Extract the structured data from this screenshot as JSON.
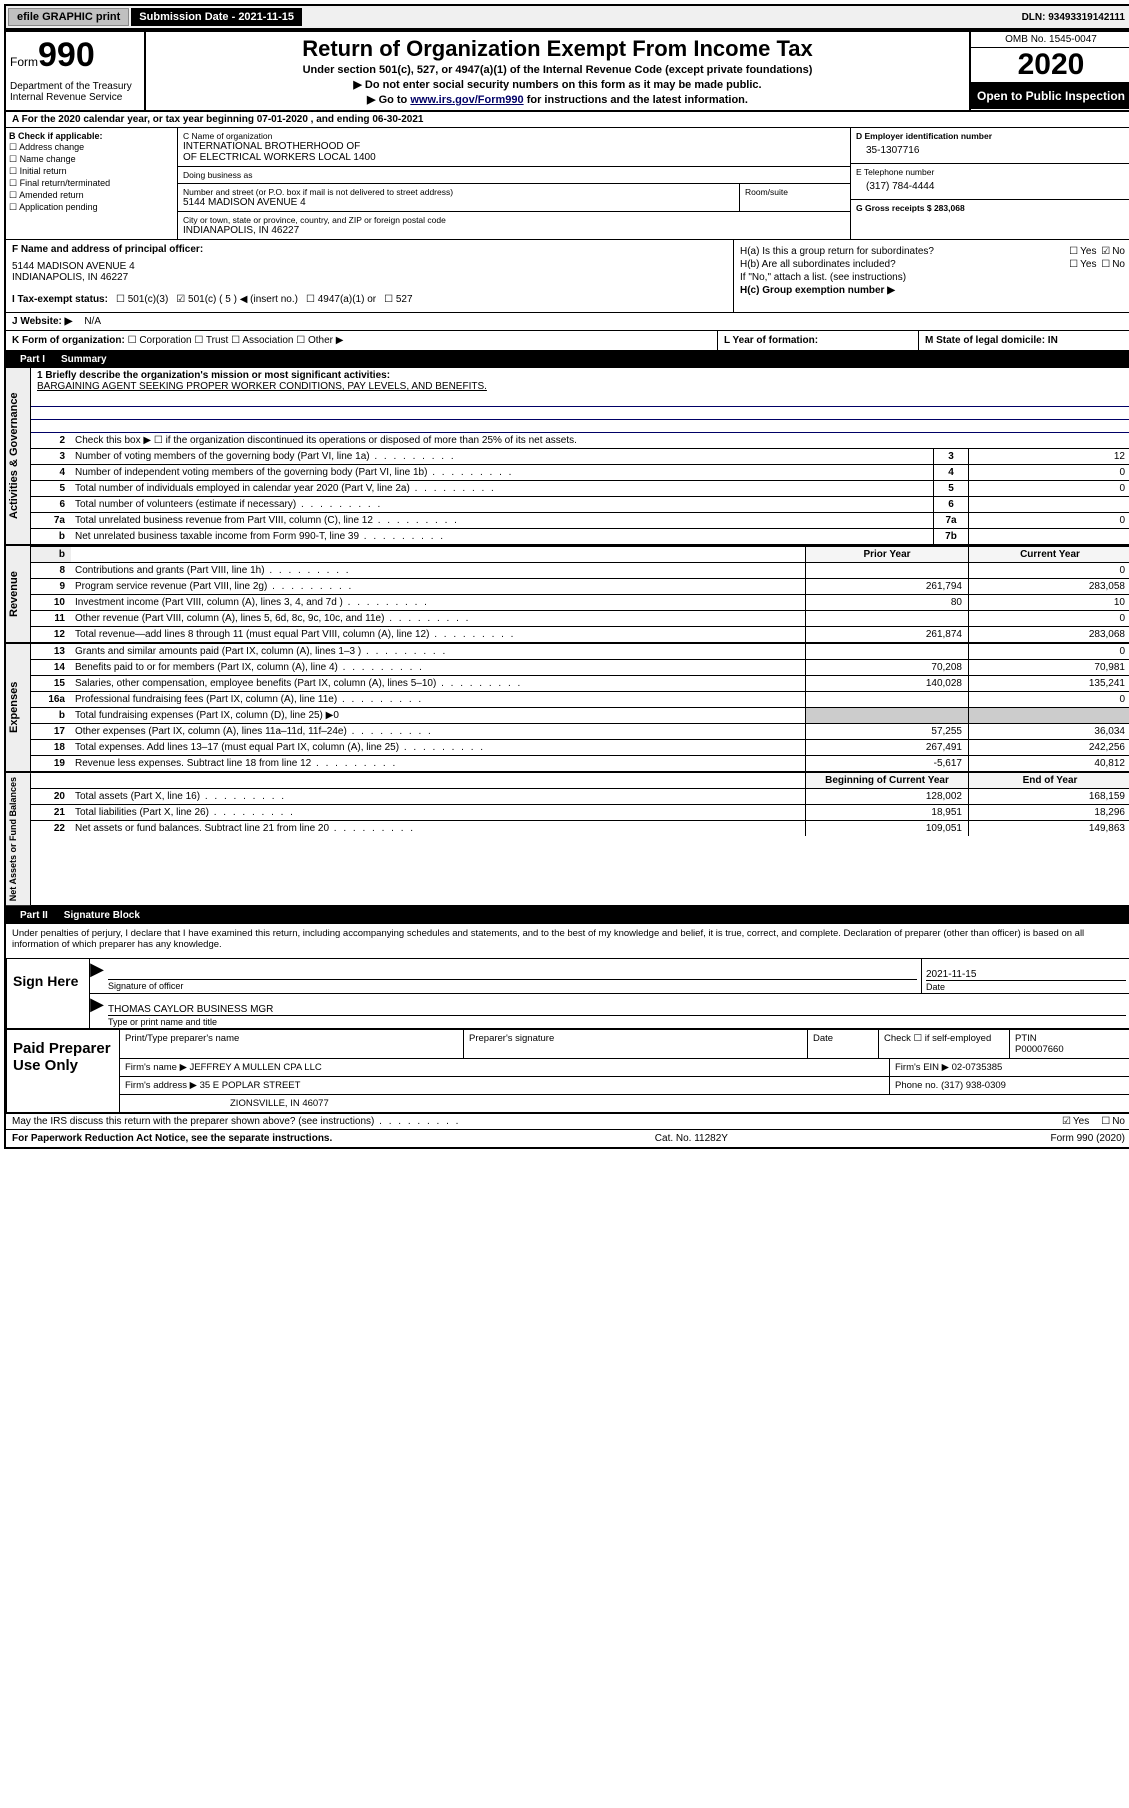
{
  "topbar": {
    "efile_label": "efile GRAPHIC print",
    "submission_label": "Submission Date - 2021-11-15",
    "dln_label": "DLN: 93493319142111"
  },
  "header": {
    "form_prefix": "Form",
    "form_number": "990",
    "dept": "Department of the Treasury\nInternal Revenue Service",
    "title": "Return of Organization Exempt From Income Tax",
    "subtitle": "Under section 501(c), 527, or 4947(a)(1) of the Internal Revenue Code (except private foundations)",
    "note1": "Do not enter social security numbers on this form as it may be made public.",
    "note2_prefix": "Go to ",
    "note2_link": "www.irs.gov/Form990",
    "note2_suffix": " for instructions and the latest information.",
    "omb": "OMB No. 1545-0047",
    "year": "2020",
    "inspect": "Open to Public Inspection"
  },
  "period": {
    "text": "A For the 2020 calendar year, or tax year beginning 07-01-2020    , and ending 06-30-2021"
  },
  "section_b": {
    "title": "B Check if applicable:",
    "opts": [
      "Address change",
      "Name change",
      "Initial return",
      "Final return/terminated",
      "Amended return",
      "Application pending"
    ]
  },
  "entity": {
    "name_label": "C Name of organization",
    "name": "INTERNATIONAL BROTHERHOOD OF\nOF ELECTRICAL WORKERS LOCAL 1400",
    "dba_label": "Doing business as",
    "dba": "",
    "addr_label": "Number and street (or P.O. box if mail is not delivered to street address)",
    "addr": "5144 MADISON AVENUE 4",
    "suite_label": "Room/suite",
    "city_label": "City or town, state or province, country, and ZIP or foreign postal code",
    "city": "INDIANAPOLIS, IN  46227"
  },
  "right_col": {
    "ein_label": "D Employer identification number",
    "ein": "35-1307716",
    "phone_label": "E Telephone number",
    "phone": "(317) 784-4444",
    "gross_label": "G Gross receipts $ 283,068"
  },
  "officer": {
    "f_label": "F Name and address of principal officer:",
    "f_val": "5144 MADISON AVENUE 4\nINDIANAPOLIS, IN  46227",
    "ha_label": "H(a)  Is this a group return for subordinates?",
    "hb_label": "H(b)  Are all subordinates included?",
    "hb_note": "If \"No,\" attach a list. (see instructions)",
    "hc_label": "H(c)  Group exemption number ▶"
  },
  "status": {
    "label": "I   Tax-exempt status:",
    "opts": [
      "501(c)(3)",
      "501(c) ( 5 ) ◀ (insert no.)",
      "4947(a)(1) or",
      "527"
    ],
    "checked_index": 1
  },
  "website": {
    "label": "J   Website: ▶",
    "value": "N/A"
  },
  "formation": {
    "k_label": "K Form of organization:",
    "k_opts": [
      "Corporation",
      "Trust",
      "Association",
      "Other ▶"
    ],
    "l_label": "L Year of formation:",
    "l_val": "",
    "m_label": "M State of legal domicile: IN"
  },
  "part1": {
    "tab": "Part I",
    "title": "Summary"
  },
  "governance": {
    "label": "Activities & Governance",
    "mission_label": "1   Briefly describe the organization's mission or most significant activities:",
    "mission": "BARGAINING AGENT SEEKING PROPER WORKER CONDITIONS, PAY LEVELS, AND BENEFITS.",
    "line2": "Check this box ▶ ☐  if the organization discontinued its operations or disposed of more than 25% of its net assets.",
    "rows": [
      {
        "n": "3",
        "d": "Number of voting members of the governing body (Part VI, line 1a)",
        "box": "3",
        "v": "12"
      },
      {
        "n": "4",
        "d": "Number of independent voting members of the governing body (Part VI, line 1b)",
        "box": "4",
        "v": "0"
      },
      {
        "n": "5",
        "d": "Total number of individuals employed in calendar year 2020 (Part V, line 2a)",
        "box": "5",
        "v": "0"
      },
      {
        "n": "6",
        "d": "Total number of volunteers (estimate if necessary)",
        "box": "6",
        "v": ""
      },
      {
        "n": "7a",
        "d": "Total unrelated business revenue from Part VIII, column (C), line 12",
        "box": "7a",
        "v": "0"
      },
      {
        "n": "b",
        "d": "Net unrelated business taxable income from Form 990-T, line 39",
        "box": "7b",
        "v": ""
      }
    ]
  },
  "revenue": {
    "label": "Revenue",
    "head_prior": "Prior Year",
    "head_current": "Current Year",
    "rows": [
      {
        "n": "8",
        "d": "Contributions and grants (Part VIII, line 1h)",
        "p": "",
        "c": "0"
      },
      {
        "n": "9",
        "d": "Program service revenue (Part VIII, line 2g)",
        "p": "261,794",
        "c": "283,058"
      },
      {
        "n": "10",
        "d": "Investment income (Part VIII, column (A), lines 3, 4, and 7d )",
        "p": "80",
        "c": "10"
      },
      {
        "n": "11",
        "d": "Other revenue (Part VIII, column (A), lines 5, 6d, 8c, 9c, 10c, and 11e)",
        "p": "",
        "c": "0"
      },
      {
        "n": "12",
        "d": "Total revenue—add lines 8 through 11 (must equal Part VIII, column (A), line 12)",
        "p": "261,874",
        "c": "283,068"
      }
    ]
  },
  "expenses": {
    "label": "Expenses",
    "rows": [
      {
        "n": "13",
        "d": "Grants and similar amounts paid (Part IX, column (A), lines 1–3 )",
        "p": "",
        "c": "0"
      },
      {
        "n": "14",
        "d": "Benefits paid to or for members (Part IX, column (A), line 4)",
        "p": "70,208",
        "c": "70,981"
      },
      {
        "n": "15",
        "d": "Salaries, other compensation, employee benefits (Part IX, column (A), lines 5–10)",
        "p": "140,028",
        "c": "135,241"
      },
      {
        "n": "16a",
        "d": "Professional fundraising fees (Part IX, column (A), line 11e)",
        "p": "",
        "c": "0"
      },
      {
        "n": "b",
        "d": "Total fundraising expenses (Part IX, column (D), line 25) ▶0",
        "p": "—",
        "c": "—"
      },
      {
        "n": "17",
        "d": "Other expenses (Part IX, column (A), lines 11a–11d, 11f–24e)",
        "p": "57,255",
        "c": "36,034"
      },
      {
        "n": "18",
        "d": "Total expenses. Add lines 13–17 (must equal Part IX, column (A), line 25)",
        "p": "267,491",
        "c": "242,256"
      },
      {
        "n": "19",
        "d": "Revenue less expenses. Subtract line 18 from line 12",
        "p": "-5,617",
        "c": "40,812"
      }
    ]
  },
  "netassets": {
    "label": "Net Assets or Fund Balances",
    "head_begin": "Beginning of Current Year",
    "head_end": "End of Year",
    "rows": [
      {
        "n": "20",
        "d": "Total assets (Part X, line 16)",
        "p": "128,002",
        "c": "168,159"
      },
      {
        "n": "21",
        "d": "Total liabilities (Part X, line 26)",
        "p": "18,951",
        "c": "18,296"
      },
      {
        "n": "22",
        "d": "Net assets or fund balances. Subtract line 21 from line 20",
        "p": "109,051",
        "c": "149,863"
      }
    ]
  },
  "part2": {
    "tab": "Part II",
    "title": "Signature Block"
  },
  "sig": {
    "perjury": "Under penalties of perjury, I declare that I have examined this return, including accompanying schedules and statements, and to the best of my knowledge and belief, it is true, correct, and complete. Declaration of preparer (other than officer) is based on all information of which preparer has any knowledge.",
    "sign_here": "Sign Here",
    "sig_officer_label": "Signature of officer",
    "date_label": "Date",
    "date_val": "2021-11-15",
    "officer_name": "THOMAS CAYLOR  BUSINESS MGR",
    "type_label": "Type or print name and title"
  },
  "prep": {
    "title": "Paid Preparer Use Only",
    "cols": [
      "Print/Type preparer's name",
      "Preparer's signature",
      "Date"
    ],
    "check_label": "Check ☐ if self-employed",
    "ptin_label": "PTIN",
    "ptin": "P00007660",
    "firm_name_label": "Firm's name    ▶",
    "firm_name": "JEFFREY A MULLEN CPA LLC",
    "firm_ein_label": "Firm's EIN ▶",
    "firm_ein": "02-0735385",
    "firm_addr_label": "Firm's address ▶",
    "firm_addr1": "35 E POPLAR STREET",
    "firm_addr2": "ZIONSVILLE, IN  46077",
    "phone_label": "Phone no.",
    "phone": "(317) 938-0309"
  },
  "discuss": {
    "text": "May the IRS discuss this return with the preparer shown above? (see instructions)",
    "yes": "Yes",
    "no": "No"
  },
  "footer": {
    "left": "For Paperwork Reduction Act Notice, see the separate instructions.",
    "mid": "Cat. No. 11282Y",
    "right": "Form 990 (2020)"
  },
  "colors": {
    "link": "#003399",
    "black": "#000000"
  }
}
